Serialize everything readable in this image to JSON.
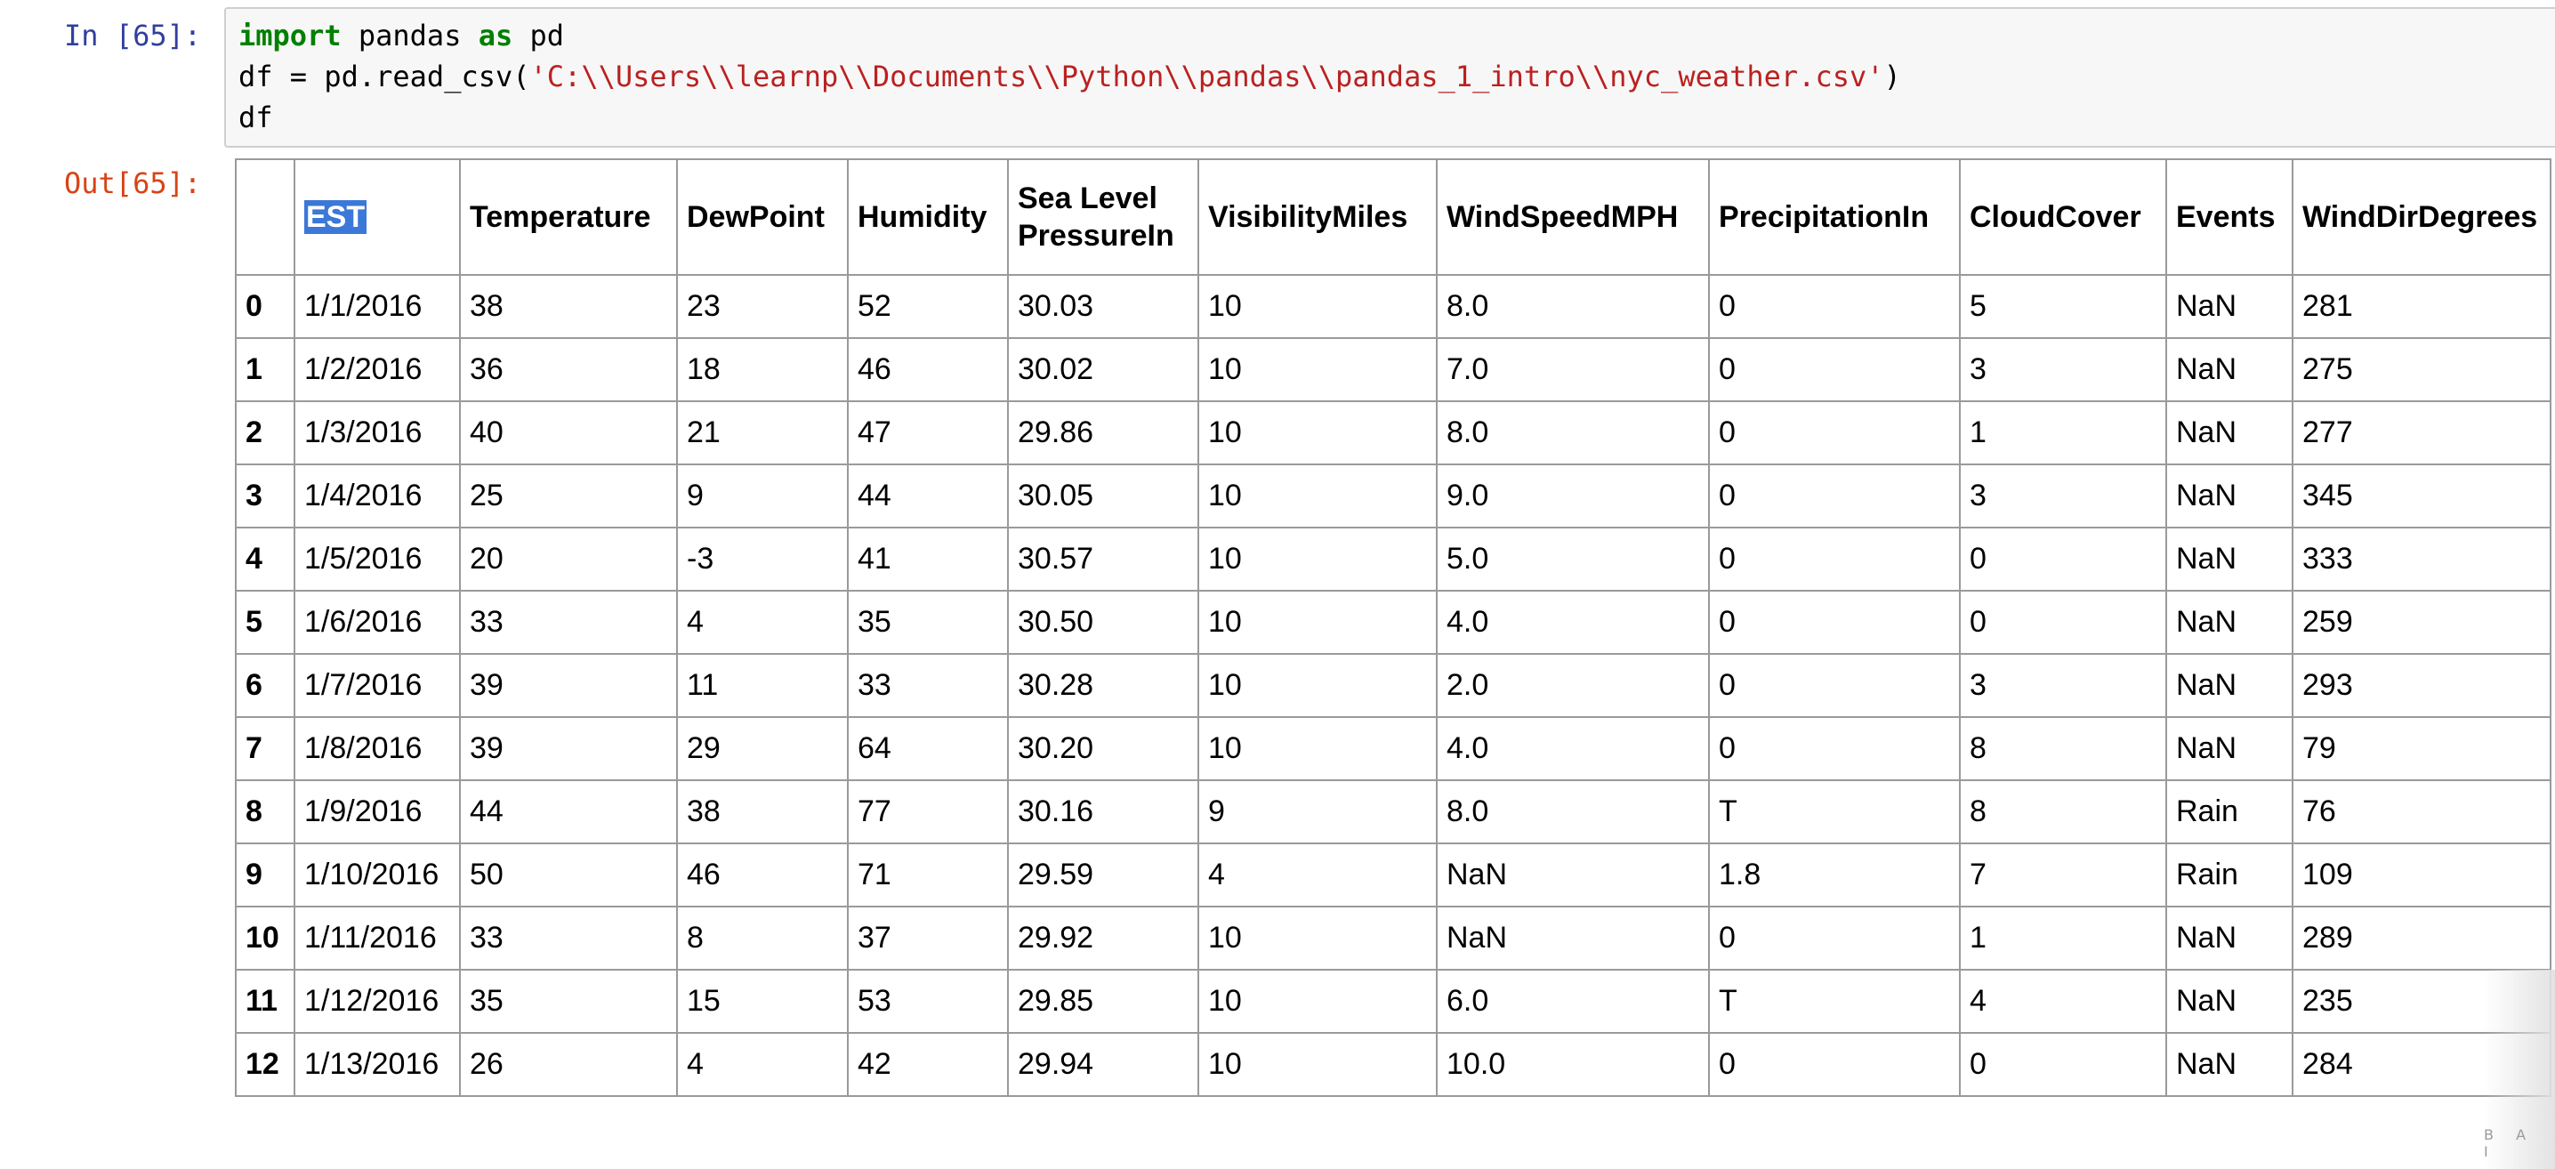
{
  "input_cell": {
    "prompt": "In [65]:",
    "code_line1": {
      "kw1": "import",
      "mid": " pandas ",
      "kw2": "as",
      "tail": " pd"
    },
    "code_line2": {
      "pre": "df = pd.read_csv(",
      "str": "'C:\\\\Users\\\\learnp\\\\Documents\\\\Python\\\\pandas\\\\pandas_1_intro\\\\nyc_weather.csv'",
      "post": ")"
    },
    "code_line3": "df"
  },
  "output_cell": {
    "prompt": "Out[65]:",
    "table": {
      "index_header": "",
      "columns": [
        "EST",
        "Temperature",
        "DewPoint",
        "Humidity",
        "Sea Level PressureIn",
        "VisibilityMiles",
        "WindSpeedMPH",
        "PrecipitationIn",
        "CloudCover",
        "Events",
        "WindDirDegrees"
      ],
      "selected_column": "EST",
      "rows": [
        {
          "index": "0",
          "cells": [
            "1/1/2016",
            "38",
            "23",
            "52",
            "30.03",
            "10",
            "8.0",
            "0",
            "5",
            "NaN",
            "281"
          ]
        },
        {
          "index": "1",
          "cells": [
            "1/2/2016",
            "36",
            "18",
            "46",
            "30.02",
            "10",
            "7.0",
            "0",
            "3",
            "NaN",
            "275"
          ]
        },
        {
          "index": "2",
          "cells": [
            "1/3/2016",
            "40",
            "21",
            "47",
            "29.86",
            "10",
            "8.0",
            "0",
            "1",
            "NaN",
            "277"
          ]
        },
        {
          "index": "3",
          "cells": [
            "1/4/2016",
            "25",
            "9",
            "44",
            "30.05",
            "10",
            "9.0",
            "0",
            "3",
            "NaN",
            "345"
          ]
        },
        {
          "index": "4",
          "cells": [
            "1/5/2016",
            "20",
            "-3",
            "41",
            "30.57",
            "10",
            "5.0",
            "0",
            "0",
            "NaN",
            "333"
          ]
        },
        {
          "index": "5",
          "cells": [
            "1/6/2016",
            "33",
            "4",
            "35",
            "30.50",
            "10",
            "4.0",
            "0",
            "0",
            "NaN",
            "259"
          ]
        },
        {
          "index": "6",
          "cells": [
            "1/7/2016",
            "39",
            "11",
            "33",
            "30.28",
            "10",
            "2.0",
            "0",
            "3",
            "NaN",
            "293"
          ]
        },
        {
          "index": "7",
          "cells": [
            "1/8/2016",
            "39",
            "29",
            "64",
            "30.20",
            "10",
            "4.0",
            "0",
            "8",
            "NaN",
            "79"
          ]
        },
        {
          "index": "8",
          "cells": [
            "1/9/2016",
            "44",
            "38",
            "77",
            "30.16",
            "9",
            "8.0",
            "T",
            "8",
            "Rain",
            "76"
          ]
        },
        {
          "index": "9",
          "cells": [
            "1/10/2016",
            "50",
            "46",
            "71",
            "29.59",
            "4",
            "NaN",
            "1.8",
            "7",
            "Rain",
            "109"
          ]
        },
        {
          "index": "10",
          "cells": [
            "1/11/2016",
            "33",
            "8",
            "37",
            "29.92",
            "10",
            "NaN",
            "0",
            "1",
            "NaN",
            "289"
          ]
        },
        {
          "index": "11",
          "cells": [
            "1/12/2016",
            "35",
            "15",
            "53",
            "29.85",
            "10",
            "6.0",
            "T",
            "4",
            "NaN",
            "235"
          ]
        },
        {
          "index": "12",
          "cells": [
            "1/13/2016",
            "26",
            "4",
            "42",
            "29.94",
            "10",
            "10.0",
            "0",
            "0",
            "NaN",
            "284"
          ]
        }
      ]
    }
  },
  "corner_watermark": "B A I",
  "colors": {
    "in_prompt": "#303f9f",
    "out_prompt": "#d84315",
    "keyword": "#008000",
    "string": "#ba2121",
    "selection": "#3b78d8"
  }
}
